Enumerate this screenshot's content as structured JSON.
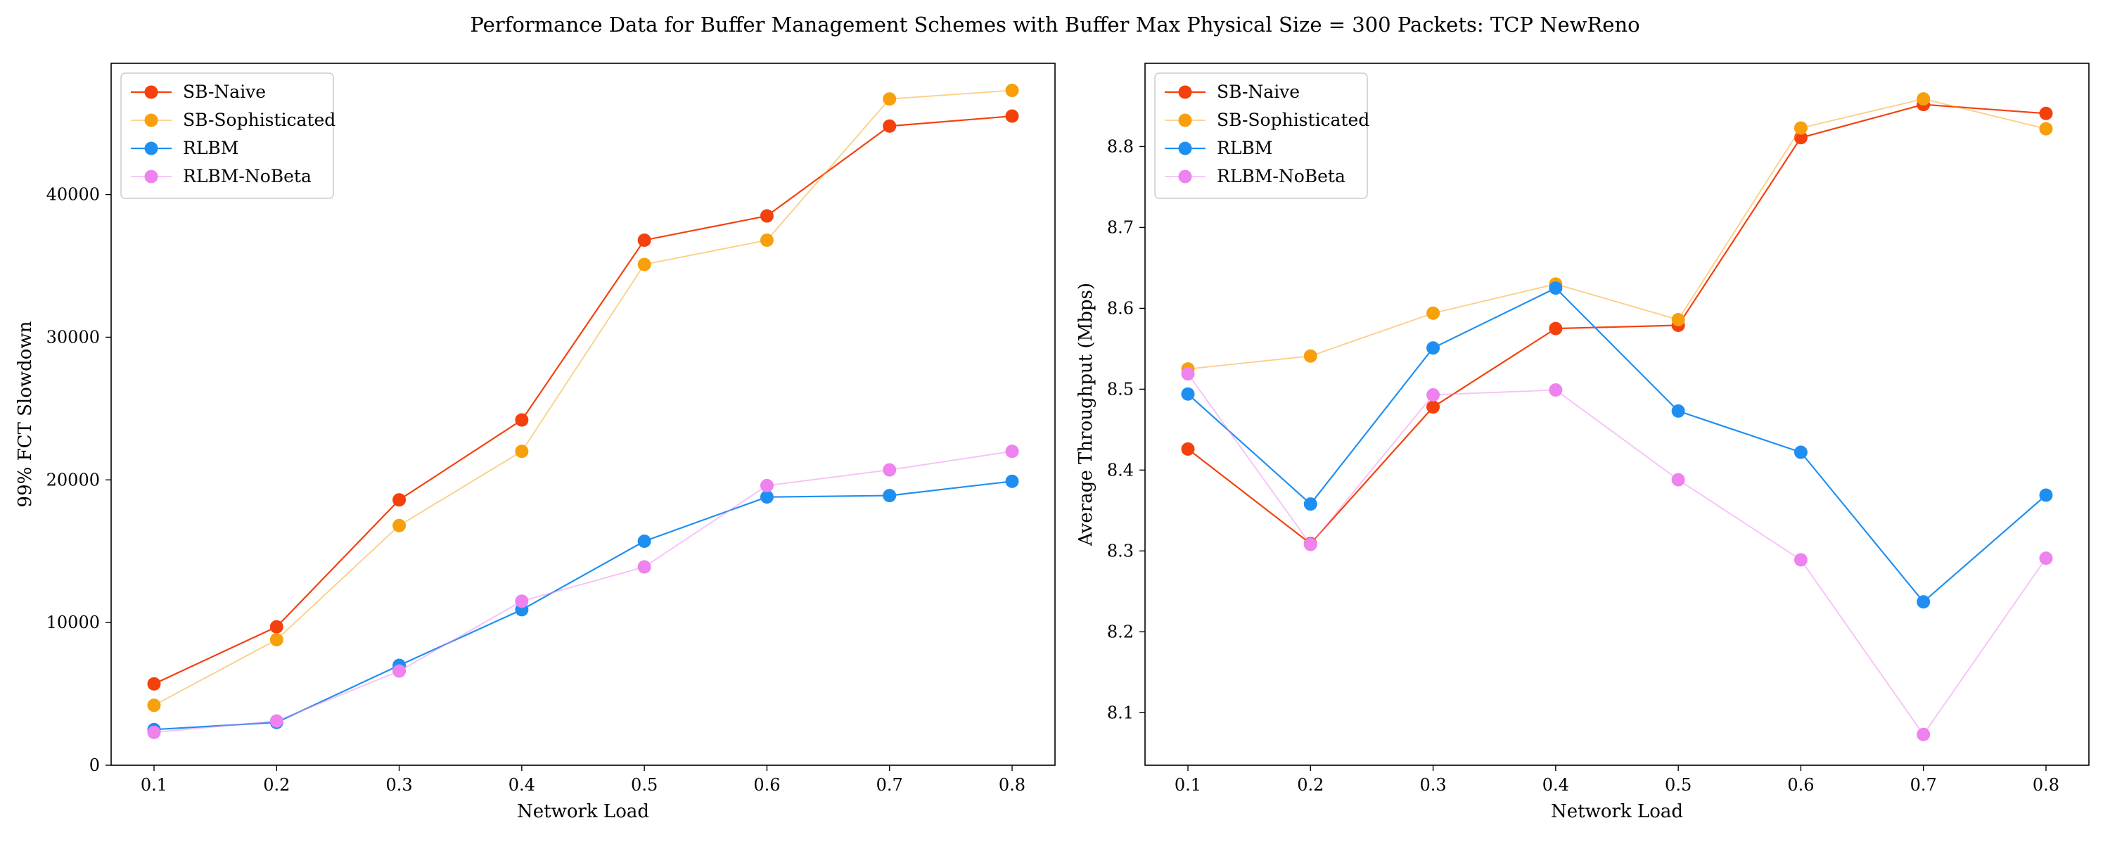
{
  "figure": {
    "title": "Performance Data for Buffer Management Schemes with Buffer Max Physical Size = 300 Packets: TCP NewReno"
  },
  "chart_data": [
    {
      "type": "line",
      "title": "",
      "xlabel": "Network Load",
      "ylabel": "99% FCT Slowdown",
      "x": [
        0.1,
        0.2,
        0.3,
        0.4,
        0.5,
        0.6,
        0.7,
        0.8
      ],
      "x_tick_labels": [
        "0.1",
        "0.2",
        "0.3",
        "0.4",
        "0.5",
        "0.6",
        "0.7",
        "0.8"
      ],
      "xlim": [
        0.065,
        0.835
      ],
      "ylim": [
        0,
        49200
      ],
      "y_ticks": [
        0,
        10000,
        20000,
        30000,
        40000
      ],
      "y_tick_labels": [
        "0",
        "10000",
        "20000",
        "30000",
        "40000"
      ],
      "legend_position": "upper-left",
      "grid": false,
      "series": [
        {
          "name": "SB-Naive",
          "color": "#f4400c",
          "line_width": 1.2,
          "line_opacity": 1.0,
          "values": [
            5700,
            9700,
            18600,
            24200,
            36800,
            38500,
            44800,
            45500
          ]
        },
        {
          "name": "SB-Sophisticated",
          "color": "#f8a00c",
          "line_width": 1.0,
          "line_opacity": 0.5,
          "values": [
            4200,
            8800,
            16800,
            22000,
            35100,
            36800,
            46700,
            47300
          ]
        },
        {
          "name": "RLBM",
          "color": "#1e8ff1",
          "line_width": 1.2,
          "line_opacity": 1.0,
          "values": [
            2500,
            3000,
            7000,
            10900,
            15700,
            18800,
            18900,
            19900
          ]
        },
        {
          "name": "RLBM-NoBeta",
          "color": "#ee82ee",
          "line_width": 1.0,
          "line_opacity": 0.5,
          "values": [
            2300,
            3100,
            6600,
            11500,
            13900,
            19600,
            20700,
            22000
          ]
        }
      ]
    },
    {
      "type": "line",
      "title": "",
      "xlabel": "Network Load",
      "ylabel": "Average Throughput (Mbps)",
      "x": [
        0.1,
        0.2,
        0.3,
        0.4,
        0.5,
        0.6,
        0.7,
        0.8
      ],
      "x_tick_labels": [
        "0.1",
        "0.2",
        "0.3",
        "0.4",
        "0.5",
        "0.6",
        "0.7",
        "0.8"
      ],
      "xlim": [
        0.065,
        0.835
      ],
      "ylim": [
        8.035,
        8.903
      ],
      "y_ticks": [
        8.1,
        8.2,
        8.3,
        8.4,
        8.5,
        8.6,
        8.7,
        8.8
      ],
      "y_tick_labels": [
        "8.1",
        "8.2",
        "8.3",
        "8.4",
        "8.5",
        "8.6",
        "8.7",
        "8.8"
      ],
      "legend_position": "upper-left",
      "grid": false,
      "series": [
        {
          "name": "SB-Naive",
          "color": "#f4400c",
          "line_width": 1.2,
          "line_opacity": 1.0,
          "values": [
            8.426,
            8.309,
            8.478,
            8.575,
            8.579,
            8.811,
            8.852,
            8.841
          ]
        },
        {
          "name": "SB-Sophisticated",
          "color": "#f8a00c",
          "line_width": 1.0,
          "line_opacity": 0.5,
          "values": [
            8.525,
            8.541,
            8.594,
            8.63,
            8.586,
            8.823,
            8.859,
            8.822
          ]
        },
        {
          "name": "RLBM",
          "color": "#1e8ff1",
          "line_width": 1.2,
          "line_opacity": 1.0,
          "values": [
            8.494,
            8.358,
            8.551,
            8.625,
            8.473,
            8.422,
            8.237,
            8.369
          ]
        },
        {
          "name": "RLBM-NoBeta",
          "color": "#ee82ee",
          "line_width": 1.0,
          "line_opacity": 0.5,
          "values": [
            8.519,
            8.308,
            8.493,
            8.499,
            8.388,
            8.289,
            8.073,
            8.291
          ]
        }
      ]
    }
  ]
}
